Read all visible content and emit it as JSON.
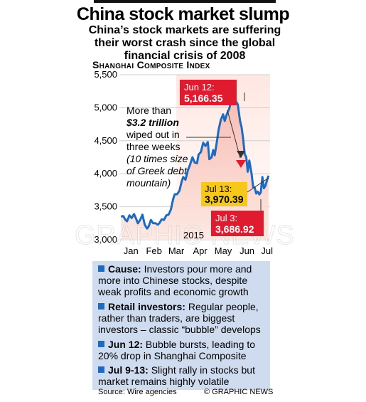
{
  "title": "China stock market slump",
  "subtitle": "China’s stock markets are suffering their worst crash since the global financial crisis of 2008",
  "chart_data": {
    "type": "line",
    "title": "Shanghai Composite Index",
    "ylim": [
      3000,
      5500
    ],
    "yticks": [
      "5,500",
      "5,000",
      "4,500",
      "4,000",
      "3,500",
      "3,000"
    ],
    "ytick_values": [
      5500,
      5000,
      4500,
      4000,
      3500,
      3000
    ],
    "months": [
      "Jan",
      "Feb",
      "Mar",
      "Apr",
      "May",
      "Jun",
      "Jul"
    ],
    "year_label": "2015",
    "series": [
      {
        "x_day": [
          2,
          5,
          8,
          10,
          13,
          16,
          19,
          22,
          24,
          27,
          30,
          33,
          36,
          38,
          41,
          44,
          47,
          50,
          52,
          55,
          58,
          61,
          64,
          67,
          70,
          72,
          75,
          78,
          81,
          83,
          86,
          89,
          92,
          95,
          98,
          101,
          103,
          106,
          109,
          112,
          115,
          117,
          120,
          122,
          124,
          127,
          129,
          132,
          135,
          137,
          140,
          143,
          146,
          148,
          151,
          154,
          157,
          159,
          161,
          163,
          165,
          167,
          169,
          172,
          174,
          176,
          178,
          180,
          182,
          184,
          186,
          188,
          190,
          192,
          194
        ],
        "values": [
          3350,
          3360,
          3300,
          3280,
          3370,
          3330,
          3390,
          3310,
          3250,
          3300,
          3380,
          3230,
          3170,
          3200,
          3300,
          3250,
          3250,
          3230,
          3250,
          3310,
          3300,
          3370,
          3380,
          3460,
          3620,
          3690,
          3690,
          3740,
          3880,
          3950,
          3910,
          4050,
          4140,
          4250,
          4170,
          4160,
          4290,
          4330,
          4470,
          4420,
          4480,
          4220,
          4250,
          4360,
          4280,
          4500,
          4660,
          4820,
          4900,
          4800,
          4910,
          4990,
          5120,
          5166,
          5110,
          5050,
          4800,
          4700,
          4530,
          4300,
          4250,
          4030,
          4200,
          4000,
          3800,
          3790,
          3700,
          3730,
          3686.92,
          3720,
          3950,
          3780,
          3820,
          3900,
          3970.39
        ]
      }
    ],
    "annotations": {
      "peak": {
        "label": "Jun 12:",
        "value": "5,166.35"
      },
      "low": {
        "label": "Jul 3:",
        "value": "3,686.92"
      },
      "rally": {
        "label": "Jul 13:",
        "value": "3,970.39"
      },
      "note_lines": [
        "More than",
        "$3.2 trillion",
        "wiped out in",
        "three weeks",
        "(10 times size",
        "of Greek debt",
        "mountain)"
      ]
    }
  },
  "info_boxes": [
    {
      "bold": "Cause:",
      "text": " Investors pour more and more into Chinese stocks, despite weak profits and economic growth"
    },
    {
      "bold": "Retail investors:",
      "text": " Regular people, rather than traders, are biggest investors – classic “bubble” develops"
    },
    {
      "bold": "Jun 12:",
      "text": " Bubble bursts, leading to 20% drop in Shanghai Composite"
    },
    {
      "bold": "Jul 9-13:",
      "text": " Slight rally in stocks but market remains highly volatile"
    }
  ],
  "source": "Source: Wire agencies",
  "copyright": "© GRAPHIC NEWS",
  "watermark": "GRAPHIC NEWS",
  "colors": {
    "line": "#1d6bc1",
    "red": "#e01b2f",
    "yellow": "#f7c81c",
    "panel": "#cfdcef",
    "square": "#1d6bc1"
  }
}
